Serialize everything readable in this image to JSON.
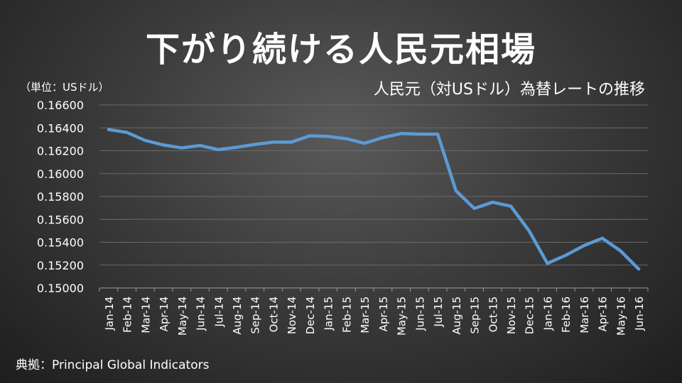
{
  "title": "下がり続ける人民元相場",
  "subtitle": "人民元（対USドル）為替レートの推移",
  "unit_label": "（単位：USドル）",
  "source": "典拠：Principal Global Indicators",
  "colors": {
    "line": "#5b9bd5",
    "grid": "#6a6a6a",
    "text": "#ffffff"
  },
  "chart_data": {
    "type": "line",
    "grid": true,
    "ylim": [
      0.15,
      0.166
    ],
    "yticks": [
      "0.15000",
      "0.15200",
      "0.15400",
      "0.15600",
      "0.15800",
      "0.16000",
      "0.16200",
      "0.16400",
      "0.16600"
    ],
    "categories": [
      "Jan-14",
      "Feb-14",
      "Mar-14",
      "Apr-14",
      "May-14",
      "Jun-14",
      "Jul-14",
      "Aug-14",
      "Sep-14",
      "Oct-14",
      "Nov-14",
      "Dec-14",
      "Jan-15",
      "Feb-15",
      "Mar-15",
      "Apr-15",
      "May-15",
      "Jun-15",
      "Jul-15",
      "Aug-15",
      "Sep-15",
      "Oct-15",
      "Nov-15",
      "Dec-15",
      "Jan-16",
      "Feb-16",
      "Mar-16",
      "Apr-16",
      "May-16",
      "Jun-16"
    ],
    "series": [
      {
        "values": [
          0.16385,
          0.1636,
          0.1629,
          0.1625,
          0.16225,
          0.16245,
          0.1621,
          0.1623,
          0.16255,
          0.16275,
          0.16275,
          0.1633,
          0.16325,
          0.16305,
          0.16265,
          0.16315,
          0.1635,
          0.16345,
          0.16345,
          0.1585,
          0.15695,
          0.1575,
          0.15715,
          0.155,
          0.15215,
          0.15285,
          0.1537,
          0.15435,
          0.15325,
          0.15165
        ]
      }
    ]
  }
}
